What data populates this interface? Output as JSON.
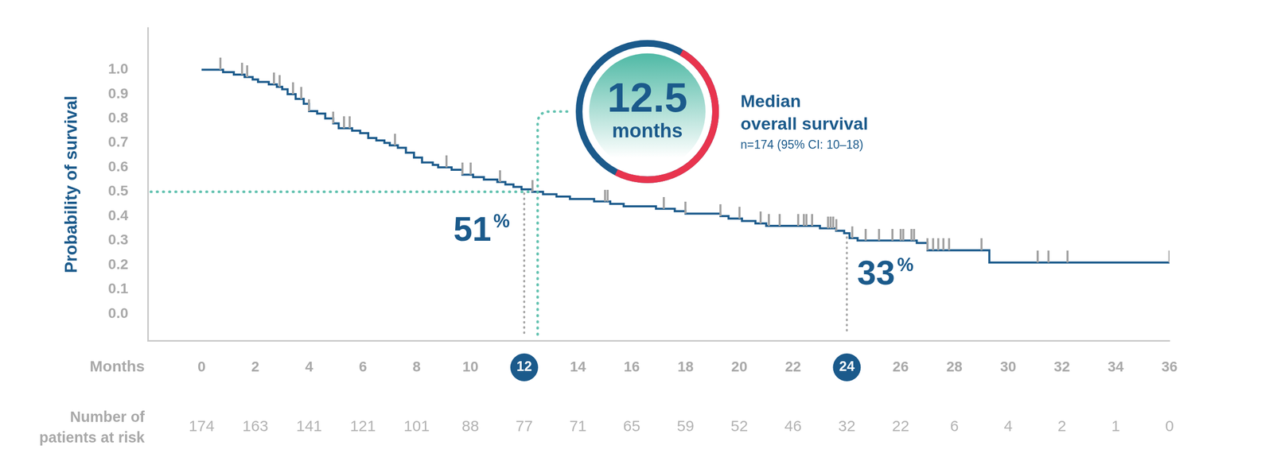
{
  "chart_data": {
    "type": "line",
    "y_label": "Probability of survival",
    "x_label": "Months",
    "xlim": [
      -2,
      36
    ],
    "xticks": [
      0,
      2,
      4,
      6,
      8,
      10,
      12,
      14,
      16,
      18,
      20,
      22,
      24,
      26,
      28,
      30,
      32,
      34,
      36
    ],
    "ylim": [
      -0.11,
      1.17
    ],
    "yticks": [
      {
        "value": 0,
        "label": "0.0"
      },
      0.1,
      0.2,
      0.3,
      0.4,
      0.5,
      0.6,
      0.7,
      0.8,
      0.9,
      {
        "value": 1,
        "label": "1.0"
      }
    ],
    "grid": false,
    "line_style": "stepped",
    "color": "#1b5a8b",
    "x": [
      0,
      0.8,
      1.2,
      1.6,
      1.9,
      2.1,
      2.5,
      2.8,
      3.0,
      3.2,
      3.5,
      3.8,
      4.0,
      4.3,
      4.6,
      4.9,
      5.1,
      5.6,
      5.9,
      6.2,
      6.5,
      6.8,
      7.0,
      7.3,
      7.6,
      7.9,
      8.2,
      8.6,
      8.8,
      9.3,
      9.7,
      10.1,
      10.5,
      11.0,
      11.3,
      11.6,
      11.9,
      12.3,
      12.7,
      13.2,
      13.7,
      14.6,
      15.2,
      15.7,
      16.9,
      17.6,
      18.0,
      19.3,
      19.6,
      20.1,
      20.6,
      21.0,
      23.0,
      23.6,
      23.9,
      24.1,
      24.4,
      26.6,
      27.0,
      29.3,
      36.0
    ],
    "values": [
      1.0,
      0.99,
      0.98,
      0.97,
      0.96,
      0.95,
      0.94,
      0.93,
      0.92,
      0.9,
      0.88,
      0.86,
      0.83,
      0.82,
      0.8,
      0.78,
      0.76,
      0.75,
      0.74,
      0.72,
      0.71,
      0.7,
      0.69,
      0.68,
      0.66,
      0.64,
      0.62,
      0.61,
      0.6,
      0.59,
      0.57,
      0.56,
      0.55,
      0.54,
      0.53,
      0.52,
      0.51,
      0.5,
      0.49,
      0.48,
      0.47,
      0.46,
      0.45,
      0.44,
      0.43,
      0.42,
      0.41,
      0.4,
      0.39,
      0.38,
      0.37,
      0.36,
      0.35,
      0.34,
      0.33,
      0.31,
      0.3,
      0.29,
      0.26,
      0.21,
      0.21
    ],
    "censored": {
      "marker": "tick",
      "color": "#a3a3a3",
      "x": [
        0.7,
        1.5,
        1.7,
        2.7,
        2.9,
        3.4,
        3.7,
        4.0,
        4.9,
        5.3,
        5.5,
        7.2,
        9.1,
        9.7,
        10.0,
        11.1,
        12.3,
        15.0,
        15.1,
        17.2,
        18.0,
        19.3,
        20.0,
        20.8,
        21.1,
        21.5,
        22.2,
        22.4,
        22.5,
        22.7,
        23.3,
        23.4,
        23.5,
        23.6,
        24.2,
        24.7,
        25.2,
        25.7,
        26.0,
        26.1,
        26.4,
        26.5,
        27.0,
        27.2,
        27.4,
        27.6,
        27.8,
        29.0,
        31.1,
        31.5,
        32.2,
        36.0
      ]
    },
    "annotations": [
      {
        "x": 12,
        "y": 0.51,
        "label": "51%"
      },
      {
        "x": 24,
        "y": 0.33,
        "label": "33%"
      }
    ],
    "median": {
      "x": 12.5,
      "y": 0.5,
      "label": "12.5",
      "unit": "months",
      "title": [
        "Median",
        "overall survival"
      ],
      "note": "n=174 (95% CI: 10–18)"
    },
    "risk_table": {
      "title": [
        "Number of",
        "patients at risk"
      ],
      "x": [
        0,
        2,
        4,
        6,
        8,
        10,
        12,
        14,
        16,
        18,
        20,
        22,
        24,
        26,
        28,
        30,
        32,
        34,
        36
      ],
      "values": [
        174,
        163,
        141,
        121,
        101,
        88,
        77,
        71,
        65,
        59,
        52,
        46,
        32,
        22,
        6,
        4,
        2,
        1,
        0
      ]
    }
  }
}
